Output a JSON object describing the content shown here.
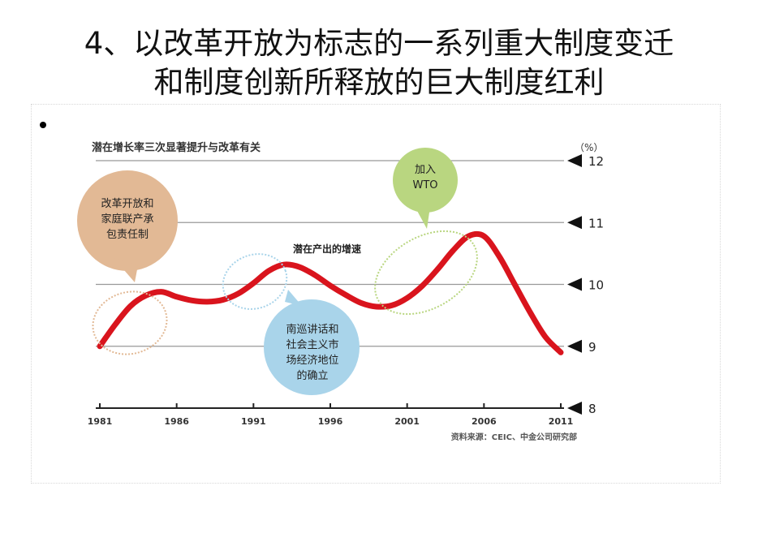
{
  "slide": {
    "title_line1": "4、以改革开放为标志的一系列重大制度变迁",
    "title_line2": "和制度创新所释放的巨大制度红利"
  },
  "chart_data": {
    "type": "line",
    "title": "潜在增长率三次显著提升与改革有关",
    "y_unit": "（%）",
    "x_ticks": [
      "1981",
      "1986",
      "1991",
      "1996",
      "2001",
      "2006",
      "2011"
    ],
    "y_ticks": [
      8,
      9,
      10,
      11,
      12
    ],
    "xlim": [
      1981,
      2011
    ],
    "ylim": [
      8,
      12
    ],
    "series_label": "潜在产出的增速",
    "series": [
      {
        "x": [
          1981,
          1982,
          1983,
          1984,
          1985,
          1986,
          1987,
          1988,
          1989,
          1990,
          1991,
          1992,
          1993,
          1994,
          1995,
          1996,
          1997,
          1998,
          1999,
          2000,
          2001,
          2002,
          2003,
          2004,
          2005,
          2006,
          2007,
          2008,
          2009,
          2010,
          2011
        ],
        "y": [
          9.0,
          9.35,
          9.65,
          9.82,
          9.88,
          9.8,
          9.74,
          9.72,
          9.75,
          9.85,
          10.02,
          10.22,
          10.32,
          10.28,
          10.15,
          9.98,
          9.83,
          9.7,
          9.64,
          9.66,
          9.78,
          9.98,
          10.25,
          10.55,
          10.78,
          10.78,
          10.45,
          10.0,
          9.55,
          9.15,
          8.9
        ]
      }
    ],
    "annotations": [
      {
        "text": "改革开放和家庭联产承包责任制",
        "lines": [
          "改革开放和",
          "家庭联产承",
          "包责任制"
        ],
        "color": "#e2b995"
      },
      {
        "text": "南巡讲话和社会主义市场经济地位的确立",
        "lines": [
          "南巡讲话和",
          "社会主义市",
          "场经济地位",
          "的确立"
        ],
        "color": "#a9d4ea"
      },
      {
        "text": "加入WTO",
        "lines": [
          "加入",
          "WTO"
        ],
        "color": "#b9d680"
      }
    ],
    "source": "资料来源：CEIC、中金公司研究部",
    "colors": {
      "line": "#d9141d",
      "grid": "#999999",
      "axis": "#222222"
    },
    "grid": true
  }
}
